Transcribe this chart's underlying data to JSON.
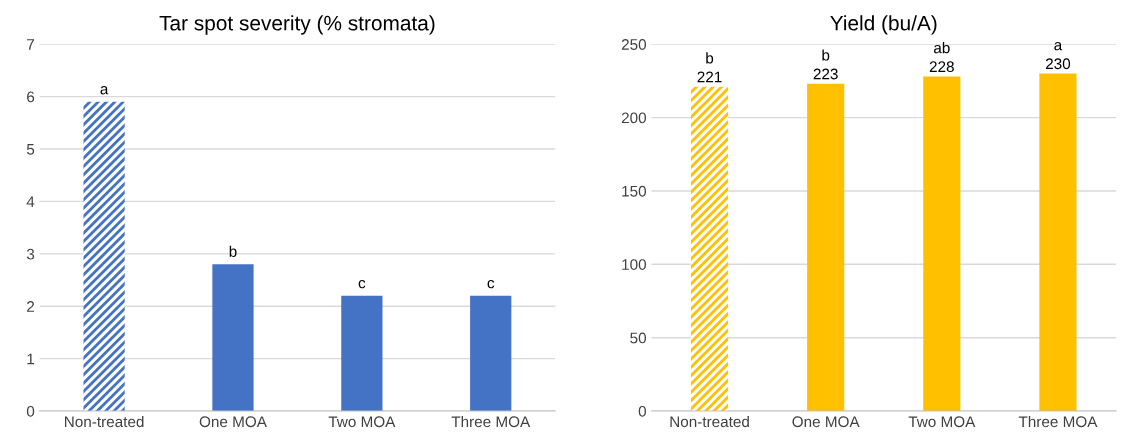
{
  "chart_data": [
    {
      "type": "bar",
      "title": "Tar spot severity (% stromata)",
      "categories": [
        "Non-treated",
        "One MOA",
        "Two MOA",
        "Three MOA"
      ],
      "values": [
        5.9,
        2.8,
        2.2,
        2.2
      ],
      "color": "#4472c4",
      "ylim": [
        0,
        7
      ],
      "yticks": [
        0,
        1,
        2,
        3,
        4,
        5,
        6,
        7
      ],
      "grid": "y",
      "annotations": [
        {
          "text": "a",
          "x": "Non-treated",
          "y": 5.9
        },
        {
          "text": "b",
          "x": "One MOA",
          "y": 2.8
        },
        {
          "text": "c",
          "x": "Two MOA",
          "y": 2.2
        },
        {
          "text": "c",
          "x": "Three MOA",
          "y": 2.2
        }
      ]
    },
    {
      "type": "bar",
      "title": "Yield (bu/A)",
      "categories": [
        "Non-treated",
        "One MOA",
        "Two MOA",
        "Three MOA"
      ],
      "values": [
        221,
        223,
        228,
        230
      ],
      "color": "#ffc000",
      "ylim": [
        0,
        250
      ],
      "yticks": [
        0,
        50,
        100,
        150,
        200,
        250
      ],
      "grid": "y",
      "data_labels": true,
      "annotations": [
        {
          "text": "b",
          "x": "Non-treated",
          "y": 221
        },
        {
          "text": "b",
          "x": "One MOA",
          "y": 223
        },
        {
          "text": "ab",
          "x": "Two MOA",
          "y": 228
        },
        {
          "text": "a",
          "x": "Three MOA",
          "y": 230
        }
      ]
    }
  ]
}
